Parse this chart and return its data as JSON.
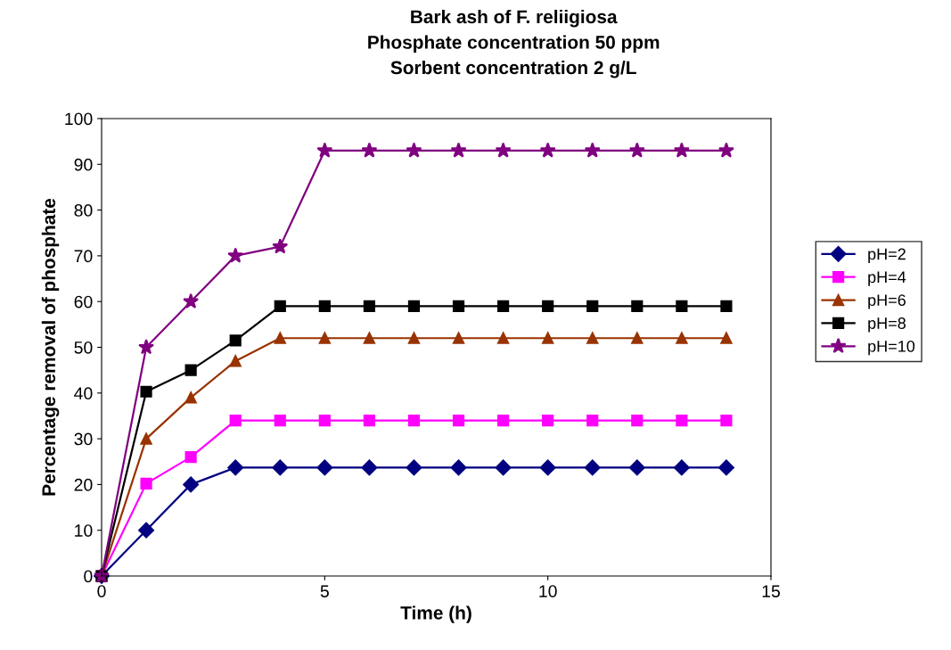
{
  "chart_data": {
    "type": "line",
    "title": "Bark ash of F. reliigiosa\nPhosphate concentration 50 ppm\nSorbent concentration 2 g/L",
    "xlabel": "Time (h)",
    "ylabel": "Percentage removal of phosphate",
    "x": [
      0,
      1,
      2,
      3,
      4,
      5,
      6,
      7,
      8,
      9,
      10,
      11,
      12,
      13,
      14
    ],
    "series": [
      {
        "name": "pH=2",
        "color": "#000080",
        "marker": "diamond",
        "values": [
          0,
          10,
          20,
          23.7,
          23.7,
          23.7,
          23.7,
          23.7,
          23.7,
          23.7,
          23.7,
          23.7,
          23.7,
          23.7,
          23.7
        ]
      },
      {
        "name": "pH=4",
        "color": "#ff00ff",
        "marker": "square",
        "values": [
          0,
          20.2,
          26,
          34,
          34,
          34,
          34,
          34,
          34,
          34,
          34,
          34,
          34,
          34,
          34
        ]
      },
      {
        "name": "pH=6",
        "color": "#993300",
        "marker": "triangle",
        "values": [
          0,
          30,
          39,
          47,
          52,
          52,
          52,
          52,
          52,
          52,
          52,
          52,
          52,
          52,
          52
        ]
      },
      {
        "name": "pH=8",
        "color": "#000000",
        "marker": "square",
        "values": [
          0,
          40.3,
          45,
          51.5,
          59,
          59,
          59,
          59,
          59,
          59,
          59,
          59,
          59,
          59,
          59
        ]
      },
      {
        "name": "pH=10",
        "color": "#800080",
        "marker": "star",
        "values": [
          0,
          50,
          60,
          70,
          72,
          93,
          93,
          93,
          93,
          93,
          93,
          93,
          93,
          93,
          93
        ]
      }
    ],
    "xlim": [
      0,
      15
    ],
    "xticks": [
      0,
      5,
      10,
      15
    ],
    "ylim": [
      0,
      100
    ],
    "yticks": [
      0,
      10,
      20,
      30,
      40,
      50,
      60,
      70,
      80,
      90,
      100
    ],
    "grid": false,
    "legend": "right",
    "line_style": "solid"
  }
}
